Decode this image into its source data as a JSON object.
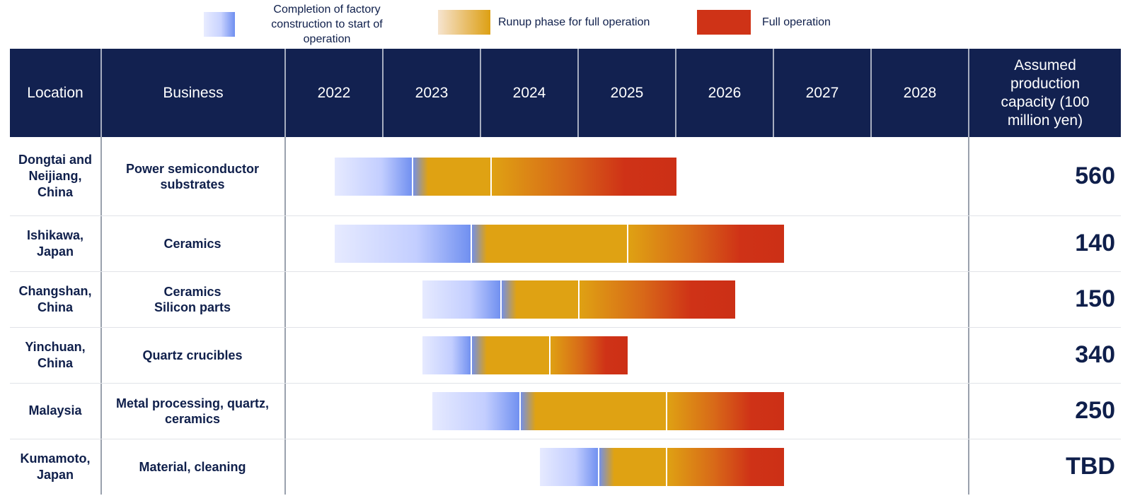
{
  "legend": {
    "construction": "Completion of factory construction to start of operation",
    "runup": "Runup phase for full operation",
    "full": "Full operation"
  },
  "header": {
    "location": "Location",
    "business": "Business",
    "years": [
      "2022",
      "2023",
      "2024",
      "2025",
      "2026",
      "2027",
      "2028"
    ],
    "capacity": "Assumed production capacity (100 million yen)"
  },
  "colors": {
    "header_bg": "#122150",
    "construction": "#6f8ff0",
    "runup": "#dfa213",
    "full": "#cf3317",
    "text": "#0f1f4b"
  },
  "chart_data": {
    "type": "gantt",
    "x_axis": {
      "min": 2022,
      "max": 2029,
      "ticks": [
        "2022",
        "2023",
        "2024",
        "2025",
        "2026",
        "2027",
        "2028"
      ]
    },
    "rows": [
      {
        "location": "Dongtai and Neijiang, China",
        "business": "Power semiconductor substrates",
        "construction_start": 2022.5,
        "operation_start": 2023.3,
        "runup_end": 2024.1,
        "full_end": 2026.0,
        "capacity": "560"
      },
      {
        "location": "Ishikawa, Japan",
        "business": "Ceramics",
        "construction_start": 2022.5,
        "operation_start": 2023.9,
        "runup_end": 2025.5,
        "full_end": 2027.1,
        "capacity": "140"
      },
      {
        "location": "Changshan, China",
        "business": "Ceramics\nSilicon parts",
        "construction_start": 2023.4,
        "operation_start": 2024.2,
        "runup_end": 2025.0,
        "full_end": 2026.6,
        "capacity": "150"
      },
      {
        "location": "Yinchuan, China",
        "business": "Quartz crucibles",
        "construction_start": 2023.4,
        "operation_start": 2023.9,
        "runup_end": 2024.7,
        "full_end": 2025.5,
        "capacity": "340"
      },
      {
        "location": "Malaysia",
        "business": "Metal processing, quartz, ceramics",
        "construction_start": 2023.5,
        "operation_start": 2024.4,
        "runup_end": 2025.9,
        "full_end": 2027.1,
        "capacity": "250"
      },
      {
        "location": "Kumamoto, Japan",
        "business": "Material, cleaning",
        "construction_start": 2024.6,
        "operation_start": 2025.2,
        "runup_end": 2025.9,
        "full_end": 2027.1,
        "capacity": "TBD"
      }
    ]
  }
}
